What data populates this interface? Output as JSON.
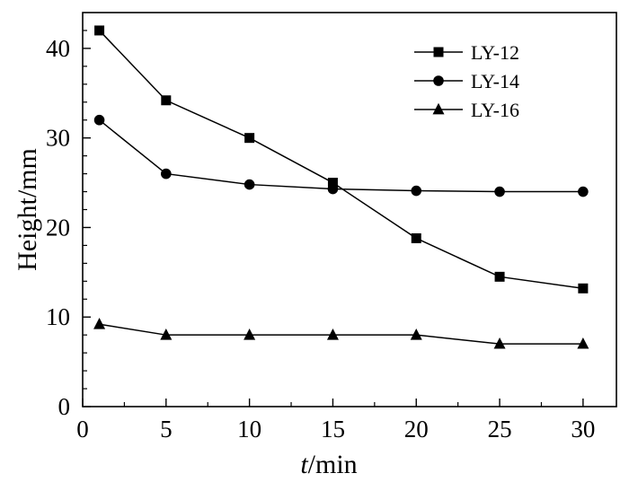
{
  "chart_data": {
    "type": "line",
    "x": [
      1,
      5,
      10,
      15,
      20,
      25,
      30
    ],
    "series": [
      {
        "name": "LY-12",
        "marker": "square",
        "values": [
          42.0,
          34.2,
          30.0,
          25.0,
          18.8,
          14.5,
          13.2
        ]
      },
      {
        "name": "LY-14",
        "marker": "circle",
        "values": [
          32.0,
          26.0,
          24.8,
          24.3,
          24.1,
          24.0,
          24.0
        ]
      },
      {
        "name": "LY-16",
        "marker": "triangle",
        "values": [
          9.2,
          8.0,
          8.0,
          8.0,
          8.0,
          7.0,
          7.0
        ]
      }
    ],
    "xlabel": {
      "italic": "t",
      "rest": "/min"
    },
    "ylabel": "Height/mm",
    "xlim": [
      0,
      32
    ],
    "ylim": [
      0,
      44
    ],
    "xticks": [
      0,
      5,
      10,
      15,
      20,
      25,
      30
    ],
    "yticks": [
      0,
      10,
      20,
      30,
      40
    ],
    "grid": false,
    "legend_position": "top-right",
    "colors": {
      "line": "#000000",
      "marker": "#000000",
      "background": "#ffffff"
    }
  }
}
